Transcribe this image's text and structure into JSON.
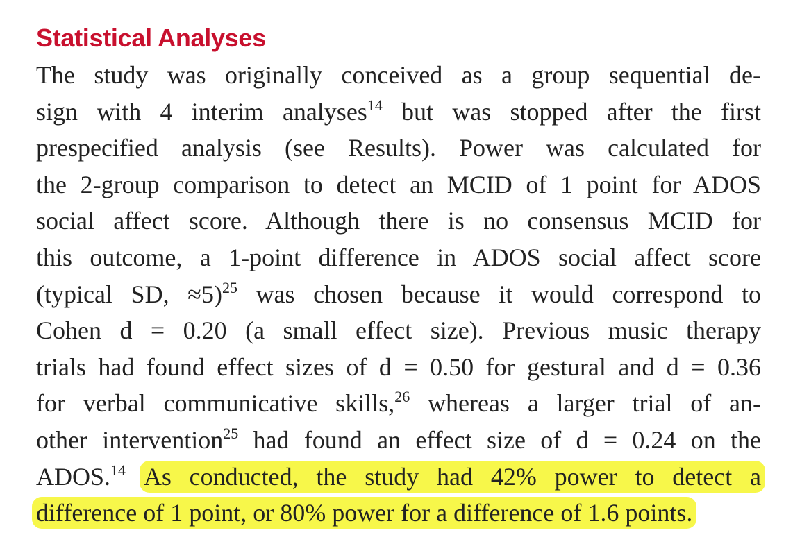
{
  "section": {
    "heading": "Statistical Analyses",
    "lines": [
      {
        "parts": [
          {
            "t": "The study was originally conceived as a group sequential de-"
          }
        ]
      },
      {
        "parts": [
          {
            "t": "sign with 4 interim analyses"
          },
          {
            "sup": "14"
          },
          {
            "t": " but was stopped after the first"
          }
        ]
      },
      {
        "parts": [
          {
            "t": "prespecified analysis (see Results). Power was calculated for"
          }
        ]
      },
      {
        "parts": [
          {
            "t": "the 2-group comparison to detect an MCID of 1 point for ADOS"
          }
        ]
      },
      {
        "parts": [
          {
            "t": "social affect score. Although there is no consensus MCID for"
          }
        ]
      },
      {
        "parts": [
          {
            "t": "this outcome, a 1-point difference in ADOS social affect score"
          }
        ]
      },
      {
        "parts": [
          {
            "t": "(typical SD, ≈5)"
          },
          {
            "sup": "25"
          },
          {
            "t": " was chosen because it would correspond to"
          }
        ]
      },
      {
        "parts": [
          {
            "t": "Cohen d = 0.20 (a small effect size). Previous music therapy"
          }
        ]
      },
      {
        "parts": [
          {
            "t": "trials had found effect sizes of d = 0.50 for gestural and d = 0.36"
          }
        ]
      },
      {
        "parts": [
          {
            "t": "for verbal communicative skills,"
          },
          {
            "sup": "26"
          },
          {
            "t": " whereas a larger trial of an-"
          }
        ]
      },
      {
        "parts": [
          {
            "t": "other intervention"
          },
          {
            "sup": "25"
          },
          {
            "t": " had found an effect size of d = 0.24 on the"
          }
        ]
      },
      {
        "parts": [
          {
            "t": "ADOS."
          },
          {
            "sup": "14"
          },
          {
            "t": " "
          },
          {
            "hl": "As conducted, the study had 42% power to detect a"
          }
        ]
      },
      {
        "parts": [
          {
            "hl": "difference of 1 point, or 80% power for a difference of 1.6 points."
          }
        ],
        "last": true
      }
    ]
  },
  "highlight_color": "#f7f74a",
  "heading_color": "#c8102e"
}
